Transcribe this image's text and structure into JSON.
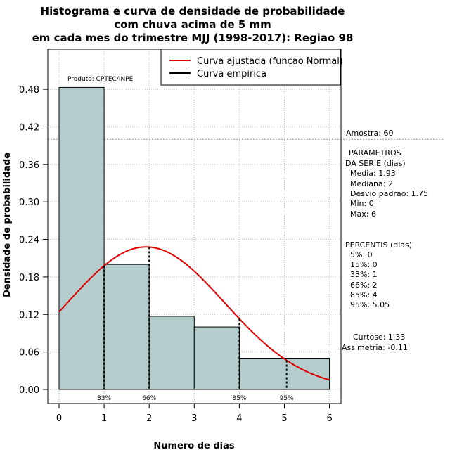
{
  "chart_data": {
    "type": "bar",
    "title_lines": [
      "Histograma e curva de densidade de probabilidade",
      "com chuva acima de 5 mm",
      "em cada mes do trimestre MJJ (1998-2017): Regiao 98"
    ],
    "xlabel": "Numero de dias",
    "ylabel": "Densidade de probabilidade",
    "xlim": [
      0,
      6
    ],
    "ylim": [
      0,
      0.54
    ],
    "x_ticks": [
      "0",
      "1",
      "2",
      "3",
      "4",
      "5",
      "6"
    ],
    "y_ticks": [
      "0.00",
      "0.06",
      "0.12",
      "0.18",
      "0.24",
      "0.30",
      "0.36",
      "0.42",
      "0.48"
    ],
    "bins": [
      {
        "from": 0,
        "to": 1,
        "density": 0.483
      },
      {
        "from": 1,
        "to": 2,
        "density": 0.2
      },
      {
        "from": 2,
        "to": 3,
        "density": 0.117
      },
      {
        "from": 3,
        "to": 4,
        "density": 0.1
      },
      {
        "from": 4,
        "to": 6,
        "density": 0.05
      }
    ],
    "bar_color": "#b4cccc",
    "normal_curve": {
      "mean": 1.93,
      "sd": 1.75,
      "color": "#dd0000"
    },
    "amostra_line_y": 0.4,
    "percentile_markers": [
      {
        "x": 1,
        "label": "33%"
      },
      {
        "x": 2,
        "label": "66%"
      },
      {
        "x": 4,
        "label": "85%"
      },
      {
        "x": 5.05,
        "label": "95%"
      }
    ],
    "legend": {
      "entries": [
        {
          "label": "Curva ajustada (funcao Normal)",
          "color": "#dd0000"
        },
        {
          "label": "Curva empirica",
          "color": "#000000"
        }
      ],
      "placement": "top-right"
    },
    "source_note": "Produto: CPTEC/INPE"
  },
  "side_panel": {
    "amostra": "Amostra: 60",
    "param_lines": [
      "PARAMETROS",
      "DA SERIE (dias)",
      "Media: 1.93",
      "Mediana: 2",
      "Desvio padrao: 1.75",
      "Min: 0",
      "Max: 6"
    ],
    "percentis_lines": [
      "PERCENTIS (dias)",
      "5%: 0",
      "15%: 0",
      "33%: 1",
      "66%: 2",
      "85%: 4",
      "95%: 5.05"
    ],
    "curtose": "Curtose: 1.33",
    "assimetria": "Assimetria: -0.11"
  }
}
